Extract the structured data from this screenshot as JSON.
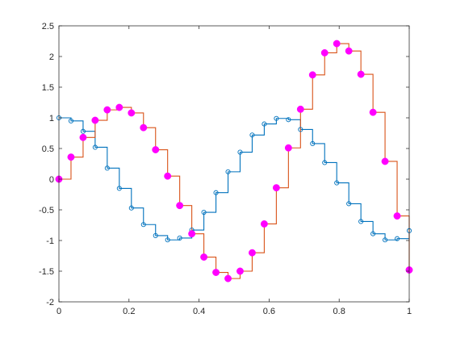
{
  "chart_data": {
    "type": "line",
    "plot_style": "stairs",
    "title": "",
    "xlabel": "",
    "ylabel": "",
    "xlim": [
      0,
      1
    ],
    "ylim": [
      -2,
      2.5
    ],
    "grid": false,
    "legend": "none",
    "x_ticks": [
      "0",
      "0.2",
      "0.4",
      "0.6",
      "0.8",
      "1"
    ],
    "y_ticks": [
      "-2",
      "-1.5",
      "-1",
      "-0.5",
      "0",
      "0.5",
      "1",
      "1.5",
      "2",
      "2.5"
    ],
    "x_tick_values": [
      0,
      0.2,
      0.4,
      0.6,
      0.8,
      1
    ],
    "y_tick_values": [
      -2,
      -1.5,
      -1,
      -0.5,
      0,
      0.5,
      1,
      1.5,
      2,
      2.5
    ],
    "x": [
      0,
      0.0345,
      0.069,
      0.1034,
      0.1379,
      0.1724,
      0.2069,
      0.2414,
      0.2759,
      0.3103,
      0.3448,
      0.3793,
      0.4138,
      0.4483,
      0.4828,
      0.5172,
      0.5517,
      0.5862,
      0.6207,
      0.6552,
      0.6897,
      0.7241,
      0.7586,
      0.7931,
      0.8276,
      0.8621,
      0.8966,
      0.931,
      0.9655,
      1
    ],
    "series": [
      {
        "color": "#0072BD",
        "marker": "open-circle",
        "values": [
          1.0,
          0.95,
          0.78,
          0.52,
          0.18,
          -0.15,
          -0.47,
          -0.74,
          -0.92,
          -0.99,
          -0.96,
          -0.83,
          -0.54,
          -0.22,
          0.12,
          0.44,
          0.72,
          0.9,
          0.99,
          0.97,
          0.81,
          0.58,
          0.27,
          -0.06,
          -0.4,
          -0.69,
          -0.89,
          -0.99,
          -0.97,
          -0.84
        ]
      },
      {
        "color": "#D95319",
        "marker": "filled-circle",
        "marker_color": "#FF00FF",
        "values": [
          0.0,
          0.36,
          0.68,
          0.96,
          1.13,
          1.17,
          1.08,
          0.84,
          0.48,
          0.05,
          -0.43,
          -0.89,
          -1.27,
          -1.52,
          -1.62,
          -1.5,
          -1.2,
          -0.73,
          -0.14,
          0.51,
          1.14,
          1.7,
          2.06,
          2.21,
          2.09,
          1.71,
          1.09,
          0.29,
          -0.6,
          -1.48
        ]
      }
    ]
  }
}
